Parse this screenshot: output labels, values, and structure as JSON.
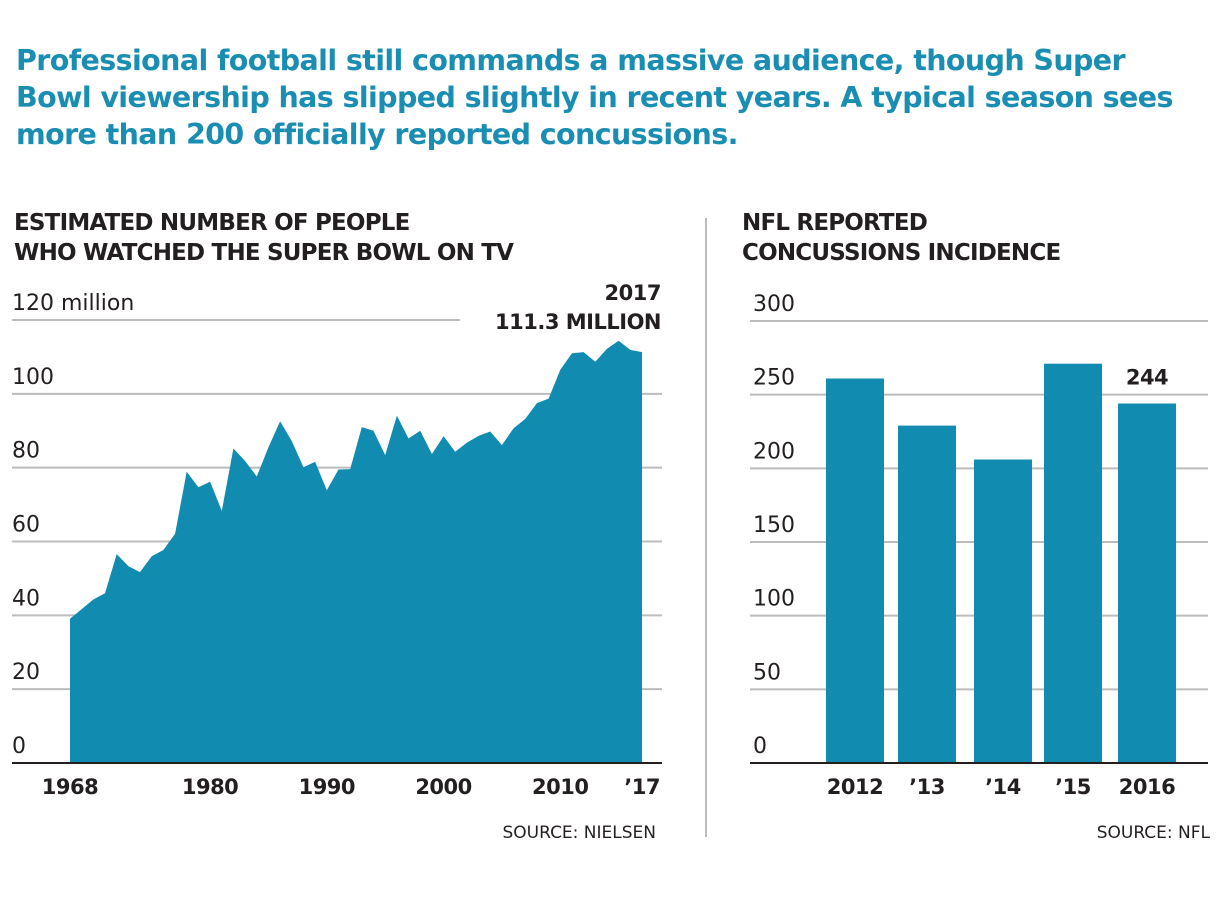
{
  "headline": "Professional football still commands a massive audience, though Super Bowl viewership has slipped slightly in recent years. A typical season sees more than 200 officially reported concussions.",
  "colors": {
    "headline": "#1a8db3",
    "fill": "#128bb0",
    "text": "#231f20",
    "grid": "#bcbcbf"
  },
  "chart_data": [
    {
      "type": "area",
      "title": "ESTIMATED NUMBER OF PEOPLE WHO WATCHED THE SUPER BOWL ON TV",
      "title_lines": [
        "ESTIMATED NUMBER OF PEOPLE",
        "WHO WATCHED THE SUPER BOWL ON TV"
      ],
      "xlabel": "",
      "ylabel": "",
      "ylim": [
        0,
        120
      ],
      "xlim": [
        1968,
        2017
      ],
      "yticks": [
        0,
        20,
        40,
        60,
        80,
        100,
        120
      ],
      "ytick_labels": [
        "0",
        "20",
        "40",
        "60",
        "80",
        "100",
        "120 million"
      ],
      "xticks": [
        1968,
        1980,
        1990,
        2000,
        2010,
        2017
      ],
      "xtick_labels": [
        "1968",
        "1980",
        "1990",
        "2000",
        "2010",
        "’17"
      ],
      "grid": true,
      "annotation": {
        "x": 2017,
        "lines": [
          "2017",
          "111.3 MILLION"
        ]
      },
      "source": "SOURCE: NIELSEN",
      "unit": "million viewers",
      "x": [
        1968,
        1969,
        1970,
        1971,
        1972,
        1973,
        1974,
        1975,
        1976,
        1977,
        1978,
        1979,
        1980,
        1981,
        1982,
        1983,
        1984,
        1985,
        1986,
        1987,
        1988,
        1989,
        1990,
        1991,
        1992,
        1993,
        1994,
        1995,
        1996,
        1997,
        1998,
        1999,
        2000,
        2001,
        2002,
        2003,
        2004,
        2005,
        2006,
        2007,
        2008,
        2009,
        2010,
        2011,
        2012,
        2013,
        2014,
        2015,
        2016,
        2017
      ],
      "values": [
        39.1,
        41.7,
        44.3,
        46.0,
        56.6,
        53.3,
        51.7,
        56.0,
        57.7,
        62.1,
        78.9,
        74.7,
        76.2,
        68.3,
        85.2,
        81.8,
        77.6,
        85.5,
        92.6,
        87.2,
        80.1,
        81.6,
        73.9,
        79.5,
        79.6,
        90.99,
        90.0,
        83.4,
        94.1,
        87.9,
        90.0,
        83.7,
        88.5,
        84.3,
        86.8,
        88.6,
        89.8,
        86.1,
        90.7,
        93.2,
        97.5,
        98.7,
        106.5,
        111.0,
        111.3,
        108.7,
        112.2,
        114.4,
        111.9,
        111.3
      ]
    },
    {
      "type": "bar",
      "title": "NFL REPORTED CONCUSSIONS INCIDENCE",
      "title_lines": [
        "NFL REPORTED",
        "CONCUSSIONS INCIDENCE"
      ],
      "xlabel": "",
      "ylabel": "",
      "ylim": [
        0,
        300
      ],
      "yticks": [
        0,
        50,
        100,
        150,
        200,
        250,
        300
      ],
      "ytick_labels": [
        "0",
        "50",
        "100",
        "150",
        "200",
        "250",
        "300"
      ],
      "grid": true,
      "categories": [
        "2012",
        "’13",
        "’14",
        "’15",
        "2016"
      ],
      "values": [
        261,
        229,
        206,
        271,
        244
      ],
      "data_labels": [
        null,
        null,
        null,
        null,
        "244"
      ],
      "source": "SOURCE: NFL"
    }
  ]
}
